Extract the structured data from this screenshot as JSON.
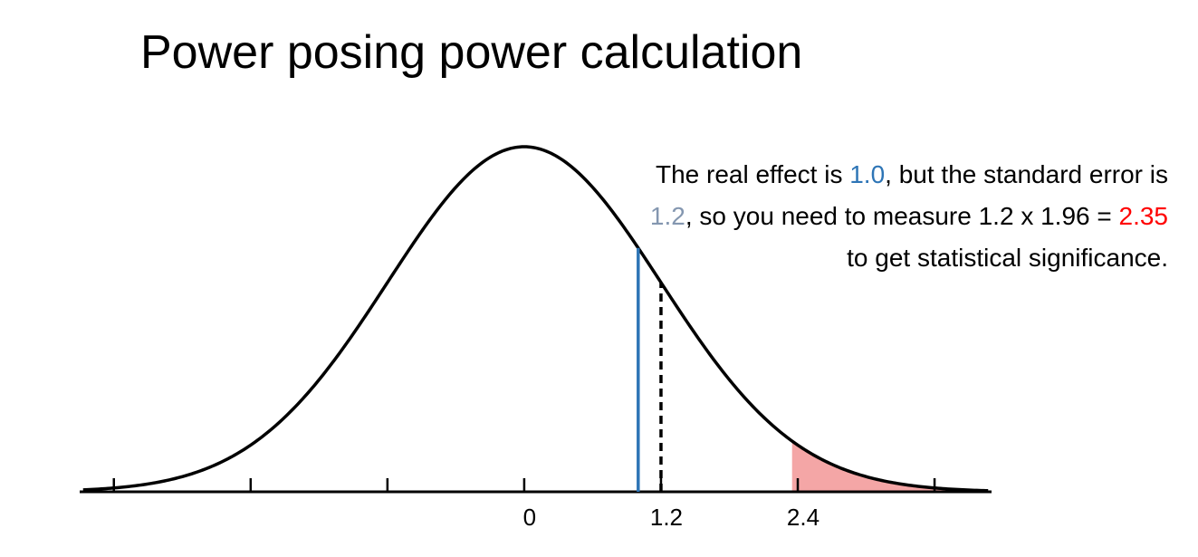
{
  "chart_data": {
    "type": "normal",
    "title": "Power posing power calculation",
    "annotation": [
      "The real effect is ",
      ", but the standard error is ",
      ", so you need to measure 1.2 x 1.96 = ",
      " to get statistical significance."
    ],
    "curve": {
      "mean": 0,
      "sd": 1.2,
      "color": "#000000"
    },
    "markers": [
      {
        "value": 1.0,
        "label": "1.0",
        "color": "#2e75b6",
        "text_color": "#2e75b6",
        "style": "solid"
      },
      {
        "value": 1.2,
        "label": "1.2",
        "color": "#000000",
        "text_color": "#8497b0",
        "style": "dashed"
      }
    ],
    "threshold": {
      "value": 2.35,
      "label": "2.35",
      "text_color": "#ff0000",
      "fill": "#f4a6a6"
    },
    "xlim": [
      -3.9,
      4.1
    ],
    "xticks": [
      {
        "value": -3.6,
        "label": null
      },
      {
        "value": -2.4,
        "label": null
      },
      {
        "value": -1.2,
        "label": null
      },
      0,
      1.2,
      2.4,
      {
        "value": 3.6,
        "label": null
      }
    ]
  }
}
